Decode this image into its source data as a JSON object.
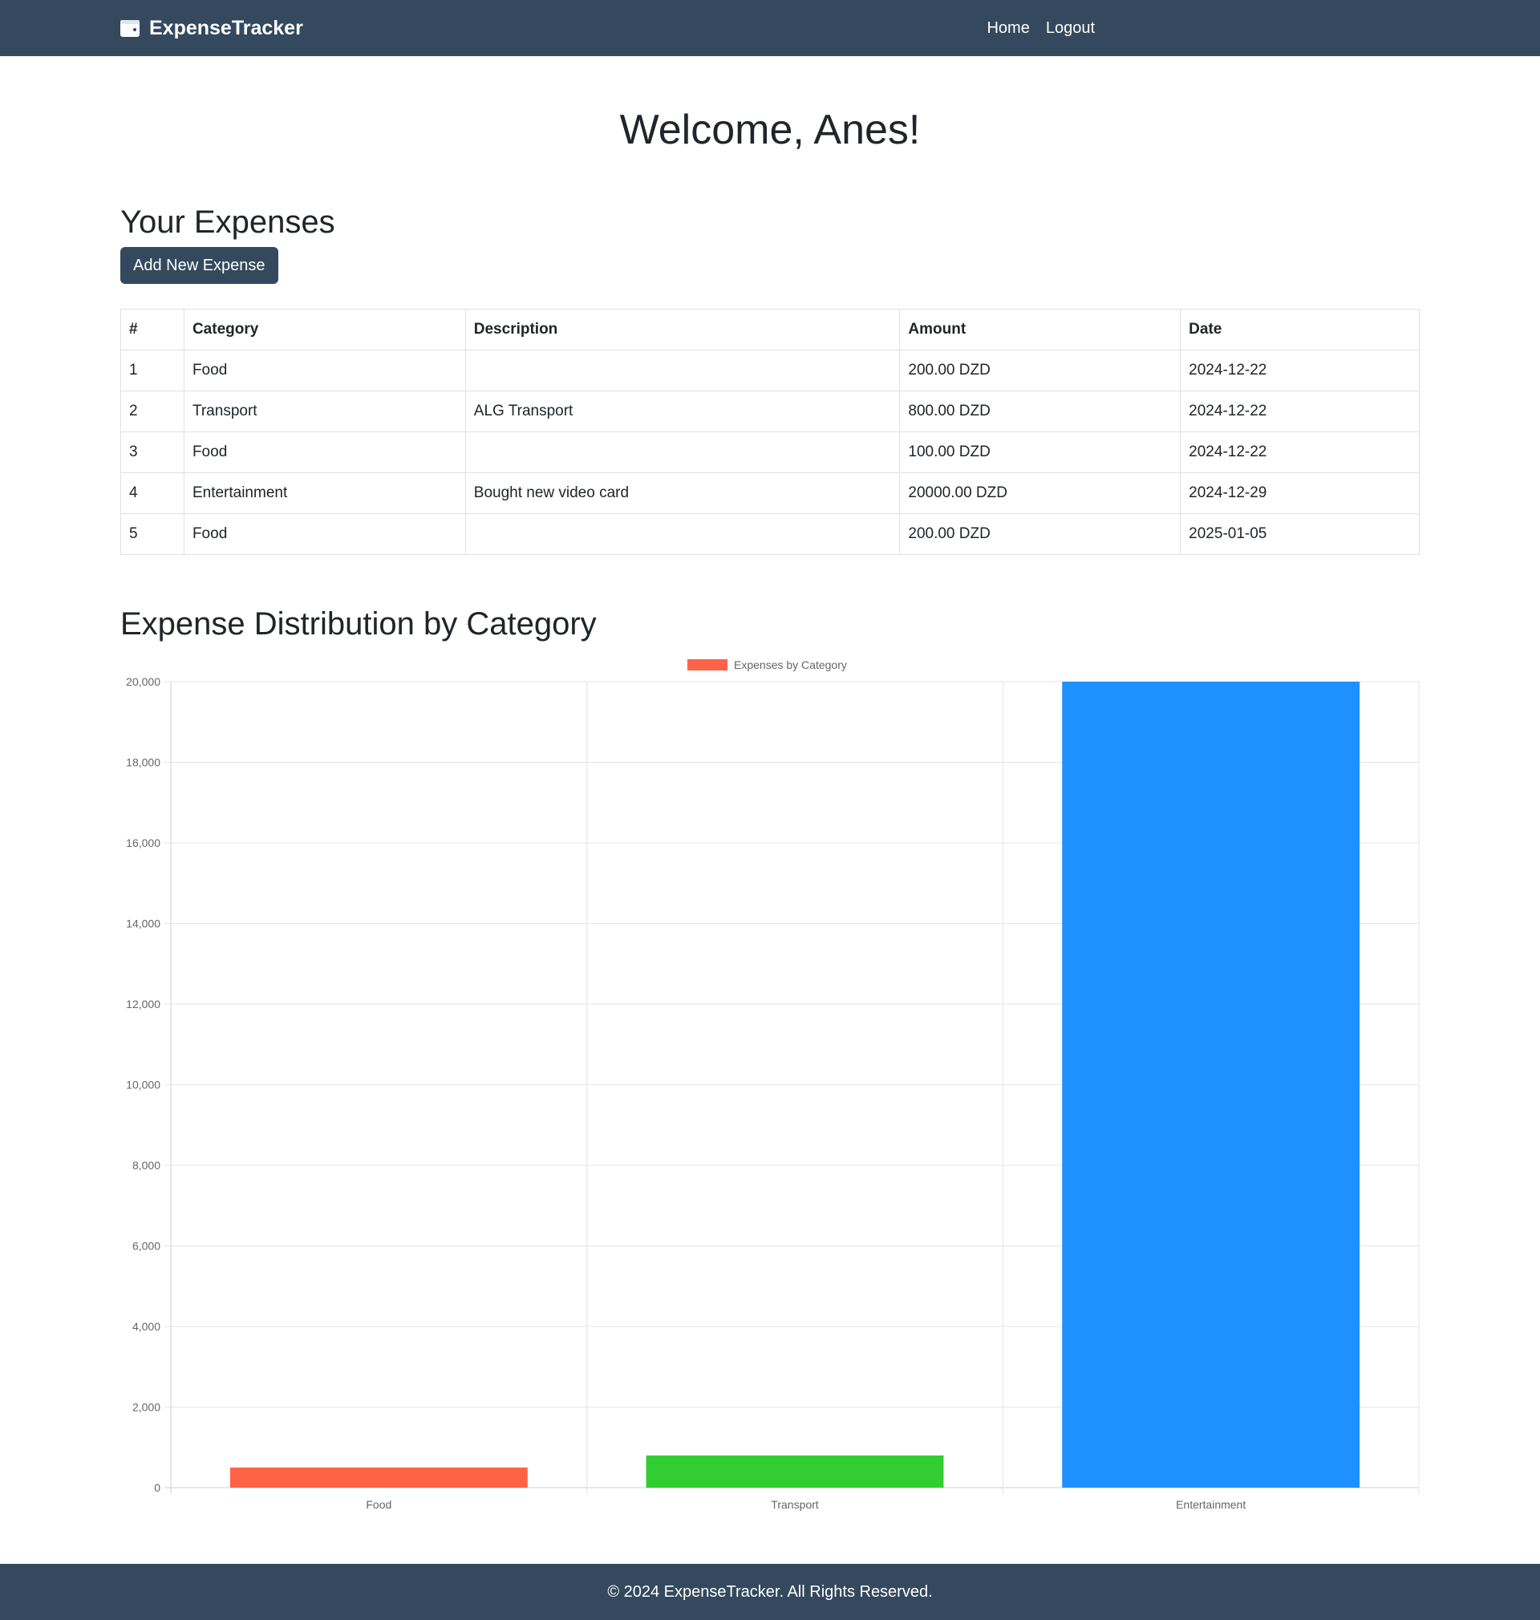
{
  "navbar": {
    "brand": "ExpenseTracker",
    "brand_icon": "wallet-icon",
    "links": [
      {
        "label": "Home"
      },
      {
        "label": "Logout"
      }
    ],
    "background": "#34495e"
  },
  "main": {
    "welcome": "Welcome, Anes!",
    "expenses_heading": "Your Expenses",
    "add_button": "Add New Expense",
    "table": {
      "headers": [
        "#",
        "Category",
        "Description",
        "Amount",
        "Date"
      ],
      "rows": [
        [
          "1",
          "Food",
          "",
          "200.00 DZD",
          "2024-12-22"
        ],
        [
          "2",
          "Transport",
          "ALG Transport",
          "800.00 DZD",
          "2024-12-22"
        ],
        [
          "3",
          "Food",
          "",
          "100.00 DZD",
          "2024-12-22"
        ],
        [
          "4",
          "Entertainment",
          "Bought new video card",
          "20000.00 DZD",
          "2024-12-29"
        ],
        [
          "5",
          "Food",
          "",
          "200.00 DZD",
          "2025-01-05"
        ]
      ]
    },
    "distribution_heading": "Expense Distribution by Category"
  },
  "chart_data": {
    "type": "bar",
    "categories": [
      "Food",
      "Transport",
      "Entertainment"
    ],
    "series": [
      {
        "name": "Expenses by Category",
        "values": [
          500,
          800,
          20000
        ]
      }
    ],
    "colors": [
      "#ff6347",
      "#32cd32",
      "#1e90ff"
    ],
    "ylim": [
      0,
      20000
    ],
    "yticks": [
      "0",
      "2,000",
      "4,000",
      "6,000",
      "8,000",
      "10,000",
      "12,000",
      "14,000",
      "16,000",
      "18,000",
      "20,000"
    ],
    "grid": true,
    "legend": "top-center"
  },
  "footer": {
    "text": "© 2024 ExpenseTracker. All Rights Reserved."
  }
}
